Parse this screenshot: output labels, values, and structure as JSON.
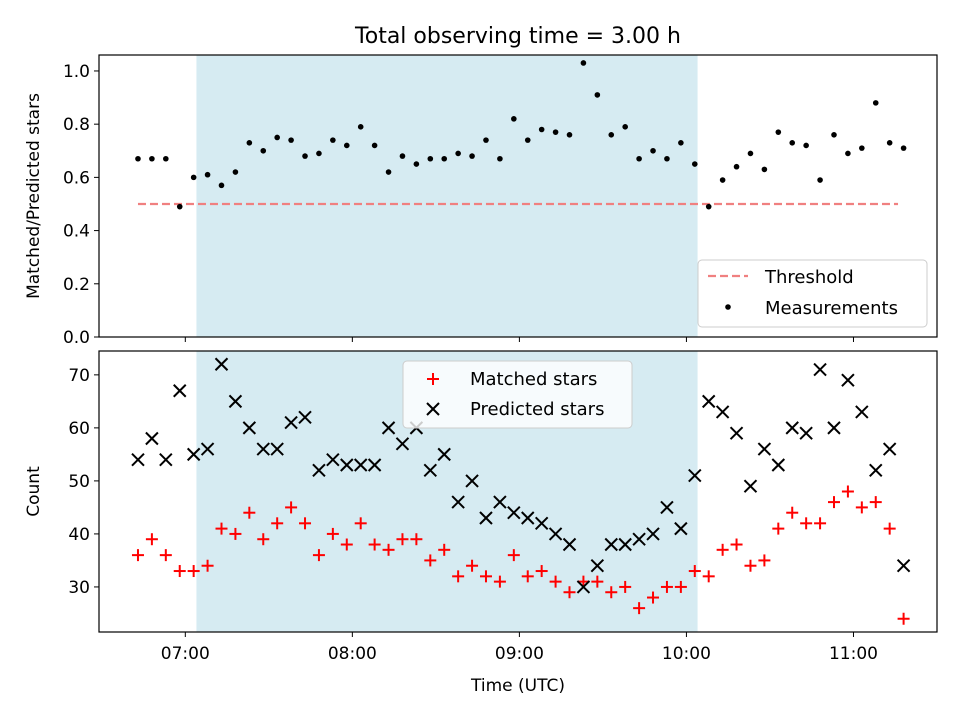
{
  "title": "Total observing time = 3.00 h",
  "xlabel": "Time (UTC)",
  "xticks": [
    "07:00",
    "08:00",
    "09:00",
    "10:00",
    "11:00"
  ],
  "colors": {
    "threshold": "#f08080",
    "measurement": "#000000",
    "matched": "#ff0000",
    "predicted": "#000000",
    "highlight": "#add8e6"
  },
  "chart_data": [
    {
      "type": "scatter",
      "ylabel": "Matched/Predicted stars",
      "ylim": [
        0,
        1.06
      ],
      "yticks": [
        "0.0",
        "0.2",
        "0.4",
        "0.6",
        "0.8",
        "1.0"
      ],
      "xlim": [
        "06:29",
        "11:30"
      ],
      "highlight_span": [
        "07:04",
        "10:04"
      ],
      "legend_position": "bottom-right",
      "threshold": {
        "name": "Threshold",
        "value": 0.5,
        "x_range": [
          "06:43",
          "11:16"
        ]
      },
      "series": [
        {
          "name": "Measurements",
          "marker": "dot",
          "x": [
            "06:43",
            "06:48",
            "06:53",
            "06:58",
            "07:03",
            "07:08",
            "07:13",
            "07:18",
            "07:23",
            "07:28",
            "07:33",
            "07:38",
            "07:43",
            "07:48",
            "07:53",
            "07:58",
            "08:03",
            "08:08",
            "08:13",
            "08:18",
            "08:23",
            "08:28",
            "08:33",
            "08:38",
            "08:43",
            "08:48",
            "08:53",
            "08:58",
            "09:03",
            "09:08",
            "09:13",
            "09:18",
            "09:23",
            "09:28",
            "09:33",
            "09:38",
            "09:43",
            "09:48",
            "09:53",
            "09:58",
            "10:03",
            "10:08",
            "10:13",
            "10:18",
            "10:23",
            "10:28",
            "10:33",
            "10:38",
            "10:43",
            "10:48",
            "10:53",
            "10:58",
            "11:03",
            "11:08",
            "11:13",
            "11:18"
          ],
          "y": [
            0.67,
            0.67,
            0.67,
            0.49,
            0.6,
            0.61,
            0.57,
            0.62,
            0.73,
            0.7,
            0.75,
            0.74,
            0.68,
            0.69,
            0.74,
            0.72,
            0.79,
            0.72,
            0.62,
            0.68,
            0.65,
            0.67,
            0.67,
            0.69,
            0.68,
            0.74,
            0.67,
            0.82,
            0.74,
            0.78,
            0.77,
            0.76,
            1.03,
            0.91,
            0.76,
            0.79,
            0.67,
            0.7,
            0.67,
            0.73,
            0.65,
            0.49,
            0.59,
            0.64,
            0.69,
            0.63,
            0.77,
            0.73,
            0.72,
            0.59,
            0.76,
            0.69,
            0.71,
            0.88,
            0.73,
            0.71
          ]
        }
      ]
    },
    {
      "type": "scatter",
      "ylabel": "Count",
      "ylim": [
        21.5,
        74.5
      ],
      "yticks": [
        "30",
        "40",
        "50",
        "60",
        "70"
      ],
      "xlim": [
        "06:29",
        "11:30"
      ],
      "highlight_span": [
        "07:04",
        "10:04"
      ],
      "legend_position": "top-center",
      "series": [
        {
          "name": "Matched stars",
          "marker": "plus",
          "x": [
            "06:43",
            "06:48",
            "06:53",
            "06:58",
            "07:03",
            "07:08",
            "07:13",
            "07:18",
            "07:23",
            "07:28",
            "07:33",
            "07:38",
            "07:43",
            "07:48",
            "07:53",
            "07:58",
            "08:03",
            "08:08",
            "08:13",
            "08:18",
            "08:23",
            "08:28",
            "08:33",
            "08:38",
            "08:43",
            "08:48",
            "08:53",
            "08:58",
            "09:03",
            "09:08",
            "09:13",
            "09:18",
            "09:23",
            "09:28",
            "09:33",
            "09:38",
            "09:43",
            "09:48",
            "09:53",
            "09:58",
            "10:03",
            "10:08",
            "10:13",
            "10:18",
            "10:23",
            "10:28",
            "10:33",
            "10:38",
            "10:43",
            "10:48",
            "10:53",
            "10:58",
            "11:03",
            "11:08",
            "11:13",
            "11:18"
          ],
          "y": [
            36,
            39,
            36,
            33,
            33,
            34,
            41,
            40,
            44,
            39,
            42,
            45,
            42,
            36,
            40,
            38,
            42,
            38,
            37,
            39,
            39,
            35,
            37,
            32,
            34,
            32,
            31,
            36,
            32,
            33,
            31,
            29,
            31,
            31,
            29,
            30,
            26,
            28,
            30,
            30,
            33,
            32,
            37,
            38,
            34,
            35,
            41,
            44,
            42,
            42,
            46,
            48,
            45,
            46,
            41,
            24
          ]
        },
        {
          "name": "Predicted stars",
          "marker": "x",
          "x": [
            "06:43",
            "06:48",
            "06:53",
            "06:58",
            "07:03",
            "07:08",
            "07:13",
            "07:18",
            "07:23",
            "07:28",
            "07:33",
            "07:38",
            "07:43",
            "07:48",
            "07:53",
            "07:58",
            "08:03",
            "08:08",
            "08:13",
            "08:18",
            "08:23",
            "08:28",
            "08:33",
            "08:38",
            "08:43",
            "08:48",
            "08:53",
            "08:58",
            "09:03",
            "09:08",
            "09:13",
            "09:18",
            "09:23",
            "09:28",
            "09:33",
            "09:38",
            "09:43",
            "09:48",
            "09:53",
            "09:58",
            "10:03",
            "10:08",
            "10:13",
            "10:18",
            "10:23",
            "10:28",
            "10:33",
            "10:38",
            "10:43",
            "10:48",
            "10:53",
            "10:58",
            "11:03",
            "11:08",
            "11:13",
            "11:18"
          ],
          "y": [
            54,
            58,
            54,
            67,
            55,
            56,
            72,
            65,
            60,
            56,
            56,
            61,
            62,
            52,
            54,
            53,
            53,
            53,
            60,
            57,
            60,
            52,
            55,
            46,
            50,
            43,
            46,
            44,
            43,
            42,
            40,
            38,
            30,
            34,
            38,
            38,
            39,
            40,
            45,
            41,
            51,
            65,
            63,
            59,
            49,
            56,
            53,
            60,
            59,
            71,
            60,
            69,
            63,
            52,
            56,
            34
          ]
        }
      ]
    }
  ]
}
